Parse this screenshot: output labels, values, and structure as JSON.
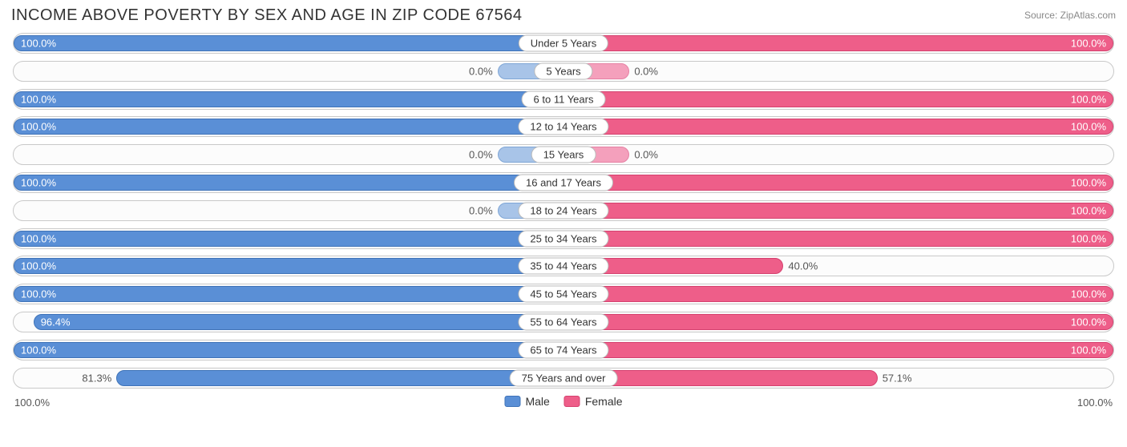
{
  "title": "INCOME ABOVE POVERTY BY SEX AND AGE IN ZIP CODE 67564",
  "source": "Source: ZipAtlas.com",
  "axis": {
    "left": "100.0%",
    "right": "100.0%"
  },
  "legend": {
    "male": "Male",
    "female": "Female"
  },
  "colors": {
    "male_fill": "#5a8fd6",
    "male_border": "#3f73b8",
    "male_light_fill": "#a8c4e8",
    "male_light_border": "#7fa6d6",
    "female_fill": "#ee5e89",
    "female_border": "#d5416f",
    "female_light_fill": "#f4a0bc",
    "female_light_border": "#e681a4",
    "track_border": "#c9c9c9",
    "background": "#ffffff"
  },
  "chart": {
    "type": "diverging-bar",
    "min_bar_percent": 12,
    "rows": [
      {
        "age": "Under 5 Years",
        "male": 100.0,
        "female": 100.0
      },
      {
        "age": "5 Years",
        "male": 0.0,
        "female": 0.0
      },
      {
        "age": "6 to 11 Years",
        "male": 100.0,
        "female": 100.0
      },
      {
        "age": "12 to 14 Years",
        "male": 100.0,
        "female": 100.0
      },
      {
        "age": "15 Years",
        "male": 0.0,
        "female": 0.0
      },
      {
        "age": "16 and 17 Years",
        "male": 100.0,
        "female": 100.0
      },
      {
        "age": "18 to 24 Years",
        "male": 0.0,
        "female": 100.0
      },
      {
        "age": "25 to 34 Years",
        "male": 100.0,
        "female": 100.0
      },
      {
        "age": "35 to 44 Years",
        "male": 100.0,
        "female": 40.0
      },
      {
        "age": "45 to 54 Years",
        "male": 100.0,
        "female": 100.0
      },
      {
        "age": "55 to 64 Years",
        "male": 96.4,
        "female": 100.0
      },
      {
        "age": "65 to 74 Years",
        "male": 100.0,
        "female": 100.0
      },
      {
        "age": "75 Years and over",
        "male": 81.3,
        "female": 57.1
      }
    ]
  }
}
